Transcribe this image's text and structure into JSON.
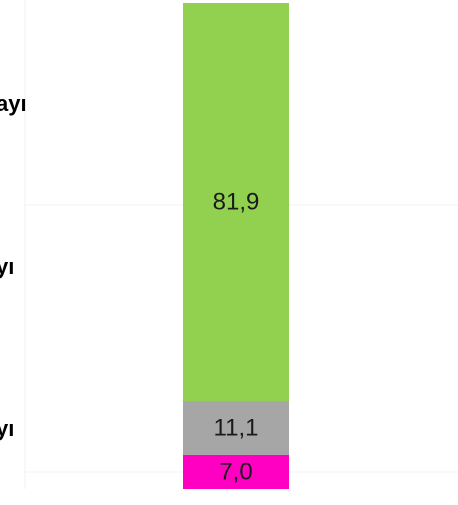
{
  "chart_data": {
    "type": "stacked-bar",
    "row_labels": [
      "ayı",
      "yı",
      "yı"
    ],
    "ylim": [
      0,
      100
    ],
    "series": [
      {
        "color": "#ff00c3",
        "values": [
          7.0
        ],
        "value_labels": [
          "7,0"
        ]
      },
      {
        "color": "#a6a6a6",
        "values": [
          11.1
        ],
        "value_labels": [
          "11,1"
        ]
      },
      {
        "color": "#92d050",
        "values": [
          81.9
        ],
        "value_labels": [
          "81,9"
        ]
      }
    ]
  }
}
